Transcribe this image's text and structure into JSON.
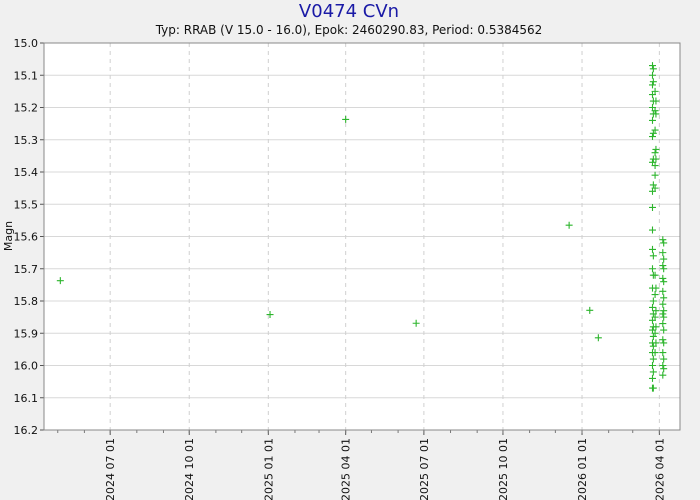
{
  "chart_data": {
    "type": "scatter",
    "title": "V0474 CVn",
    "subtitle": "Typ: RRAB (V 15.0 - 16.0), Epok: 2460290.83, Period: 0.5384562",
    "xlabel": "",
    "ylabel": "Magn",
    "ylim": [
      15.0,
      16.2
    ],
    "y_inverted": true,
    "xlim": [
      "2024-04-15",
      "2026-04-25"
    ],
    "y_ticks": [
      "15.0",
      "15.1",
      "15.2",
      "15.3",
      "15.4",
      "15.5",
      "15.6",
      "15.7",
      "15.8",
      "15.9",
      "16.0",
      "16.1",
      "16.2"
    ],
    "x_ticks": [
      "2024 07 01",
      "2024 10 01",
      "2025 01 01",
      "2025 04 01",
      "2025 07 01",
      "2025 10 01",
      "2026 01 01",
      "2026 04 01"
    ],
    "grid": true,
    "marker": "+",
    "colors": {
      "points": "#2db52d",
      "title": "#1a1aa6",
      "plot_bg": "#ffffff",
      "page_bg": "#f0f0f0"
    },
    "series": [
      {
        "values": [
          [
            "2024-05-04",
            15.737
          ],
          [
            "2025-01-03",
            15.842
          ],
          [
            "2025-04-01",
            15.237
          ],
          [
            "2025-06-22",
            15.869
          ],
          [
            "2025-12-17",
            15.565
          ],
          [
            "2026-01-10",
            15.829
          ],
          [
            "2026-01-20",
            15.914
          ],
          [
            "2026-03-24",
            15.07
          ],
          [
            "2026-03-24",
            15.1
          ],
          [
            "2026-03-24",
            15.13
          ],
          [
            "2026-03-24",
            15.16
          ],
          [
            "2026-03-24",
            15.2
          ],
          [
            "2026-03-24",
            15.24
          ],
          [
            "2026-03-24",
            15.29
          ],
          [
            "2026-03-24",
            15.37
          ],
          [
            "2026-03-24",
            15.46
          ],
          [
            "2026-03-24",
            15.51
          ],
          [
            "2026-03-24",
            15.58
          ],
          [
            "2026-03-24",
            15.64
          ],
          [
            "2026-03-24",
            15.7
          ],
          [
            "2026-03-24",
            15.76
          ],
          [
            "2026-03-24",
            15.82
          ],
          [
            "2026-03-24",
            15.86
          ],
          [
            "2026-03-24",
            15.89
          ],
          [
            "2026-03-24",
            15.93
          ],
          [
            "2026-03-24",
            15.96
          ],
          [
            "2026-03-24",
            16.0
          ],
          [
            "2026-03-24",
            16.04
          ],
          [
            "2026-03-24",
            16.07
          ],
          [
            "2026-03-25",
            15.08
          ],
          [
            "2026-03-25",
            15.12
          ],
          [
            "2026-03-25",
            15.18
          ],
          [
            "2026-03-25",
            15.22
          ],
          [
            "2026-03-25",
            15.28
          ],
          [
            "2026-03-25",
            15.36
          ],
          [
            "2026-03-25",
            15.44
          ],
          [
            "2026-03-25",
            15.66
          ],
          [
            "2026-03-25",
            15.72
          ],
          [
            "2026-03-25",
            15.8
          ],
          [
            "2026-03-25",
            15.84
          ],
          [
            "2026-03-25",
            15.88
          ],
          [
            "2026-03-25",
            15.91
          ],
          [
            "2026-03-25",
            15.94
          ],
          [
            "2026-03-25",
            15.98
          ],
          [
            "2026-03-25",
            16.02
          ],
          [
            "2026-03-25",
            16.07
          ],
          [
            "2026-03-27",
            15.15
          ],
          [
            "2026-03-27",
            15.21
          ],
          [
            "2026-03-27",
            15.27
          ],
          [
            "2026-03-27",
            15.34
          ],
          [
            "2026-03-27",
            15.38
          ],
          [
            "2026-03-27",
            15.41
          ],
          [
            "2026-03-27",
            15.45
          ],
          [
            "2026-03-27",
            15.72
          ],
          [
            "2026-03-27",
            15.78
          ],
          [
            "2026-03-27",
            15.85
          ],
          [
            "2026-03-27",
            15.9
          ],
          [
            "2026-03-27",
            15.96
          ],
          [
            "2026-03-28",
            15.18
          ],
          [
            "2026-03-28",
            15.22
          ],
          [
            "2026-03-28",
            15.33
          ],
          [
            "2026-03-28",
            15.36
          ],
          [
            "2026-03-28",
            15.76
          ],
          [
            "2026-03-28",
            15.83
          ],
          [
            "2026-03-28",
            15.88
          ],
          [
            "2026-03-28",
            15.93
          ],
          [
            "2026-04-05",
            15.61
          ],
          [
            "2026-04-05",
            15.65
          ],
          [
            "2026-04-05",
            15.69
          ],
          [
            "2026-04-05",
            15.73
          ],
          [
            "2026-04-05",
            15.77
          ],
          [
            "2026-04-05",
            15.81
          ],
          [
            "2026-04-05",
            15.84
          ],
          [
            "2026-04-05",
            15.87
          ],
          [
            "2026-04-05",
            15.92
          ],
          [
            "2026-04-05",
            15.96
          ],
          [
            "2026-04-05",
            16.0
          ],
          [
            "2026-04-05",
            16.03
          ],
          [
            "2026-04-06",
            15.62
          ],
          [
            "2026-04-06",
            15.67
          ],
          [
            "2026-04-06",
            15.7
          ],
          [
            "2026-04-06",
            15.74
          ],
          [
            "2026-04-06",
            15.79
          ],
          [
            "2026-04-06",
            15.83
          ],
          [
            "2026-04-06",
            15.85
          ],
          [
            "2026-04-06",
            15.89
          ],
          [
            "2026-04-06",
            15.93
          ],
          [
            "2026-04-06",
            15.98
          ],
          [
            "2026-04-06",
            16.01
          ]
        ]
      }
    ]
  }
}
